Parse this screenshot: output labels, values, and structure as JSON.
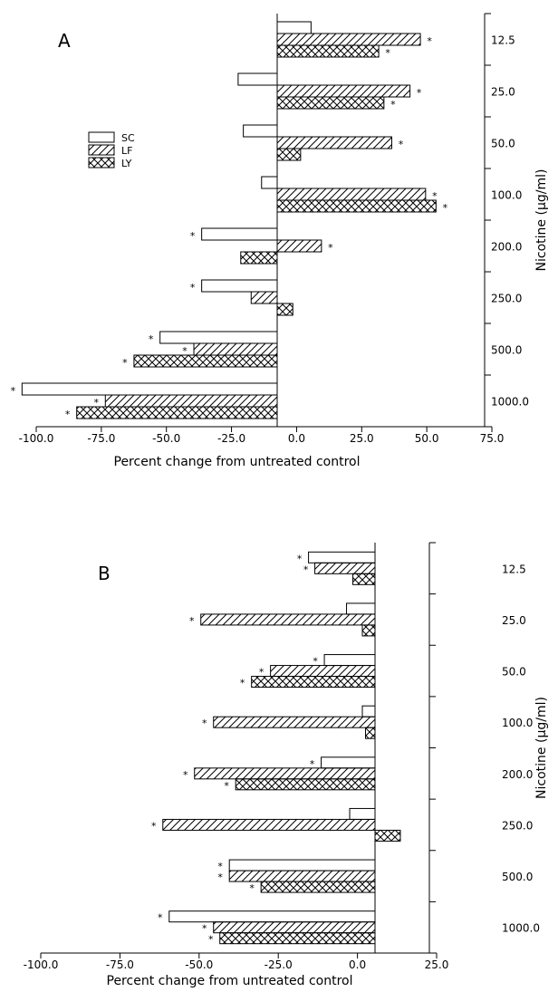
{
  "chart_data": [
    {
      "type": "bar",
      "orientation": "horizontal",
      "panel_label": "A",
      "categories": [
        "12.5",
        "25.0",
        "50.0",
        "100.0",
        "200.0",
        "250.0",
        "500.0",
        "1000.0"
      ],
      "series": [
        {
          "name": "SC",
          "values": [
            13,
            -15,
            -13,
            -6,
            -29,
            -29,
            -45,
            -98
          ],
          "significant": [
            false,
            false,
            false,
            false,
            true,
            true,
            true,
            true
          ]
        },
        {
          "name": "LF",
          "values": [
            55,
            51,
            44,
            57,
            17,
            -10,
            -32,
            -66
          ],
          "significant": [
            true,
            true,
            true,
            true,
            true,
            false,
            true,
            true
          ]
        },
        {
          "name": "LY",
          "values": [
            39,
            41,
            9,
            61,
            -14,
            6,
            -55,
            -77
          ],
          "significant": [
            true,
            true,
            false,
            true,
            false,
            false,
            true,
            true
          ]
        }
      ],
      "xlabel": "Percent change from untreated control",
      "ylabel": "Nicotine (μg/ml)",
      "xlim": [
        -100,
        75
      ],
      "xticks": [
        "-100.0",
        "-75.0",
        "-50.0",
        "-25.0",
        "0.0",
        "25.0",
        "50.0",
        "75.0"
      ],
      "significance_marker": "*",
      "legend_position": "left"
    },
    {
      "type": "bar",
      "orientation": "horizontal",
      "panel_label": "B",
      "categories": [
        "12.5",
        "25.0",
        "50.0",
        "100.0",
        "200.0",
        "250.0",
        "500.0",
        "1000.0"
      ],
      "series": [
        {
          "name": "SC",
          "values": [
            -21,
            -9,
            -16,
            -4,
            -17,
            -8,
            -46,
            -65
          ],
          "significant": [
            true,
            false,
            true,
            false,
            true,
            false,
            true,
            true
          ]
        },
        {
          "name": "LF",
          "values": [
            -19,
            -55,
            -33,
            -51,
            -57,
            -67,
            -46,
            -51
          ],
          "significant": [
            true,
            true,
            true,
            true,
            true,
            true,
            true,
            true
          ]
        },
        {
          "name": "LY",
          "values": [
            -7,
            -4,
            -39,
            -3,
            -44,
            8,
            -36,
            -49
          ],
          "significant": [
            false,
            false,
            true,
            false,
            true,
            false,
            true,
            true
          ]
        }
      ],
      "xlabel": "Percent change from untreated control",
      "ylabel": "Nicotine (μg/ml)",
      "xlim": [
        -100,
        25
      ],
      "xticks": [
        "-100.0",
        "-75.0",
        "-50.0",
        "-25.0",
        "0.0",
        "25.0"
      ],
      "significance_marker": "*"
    }
  ],
  "legend": {
    "items": [
      "SC",
      "LF",
      "LY"
    ]
  }
}
